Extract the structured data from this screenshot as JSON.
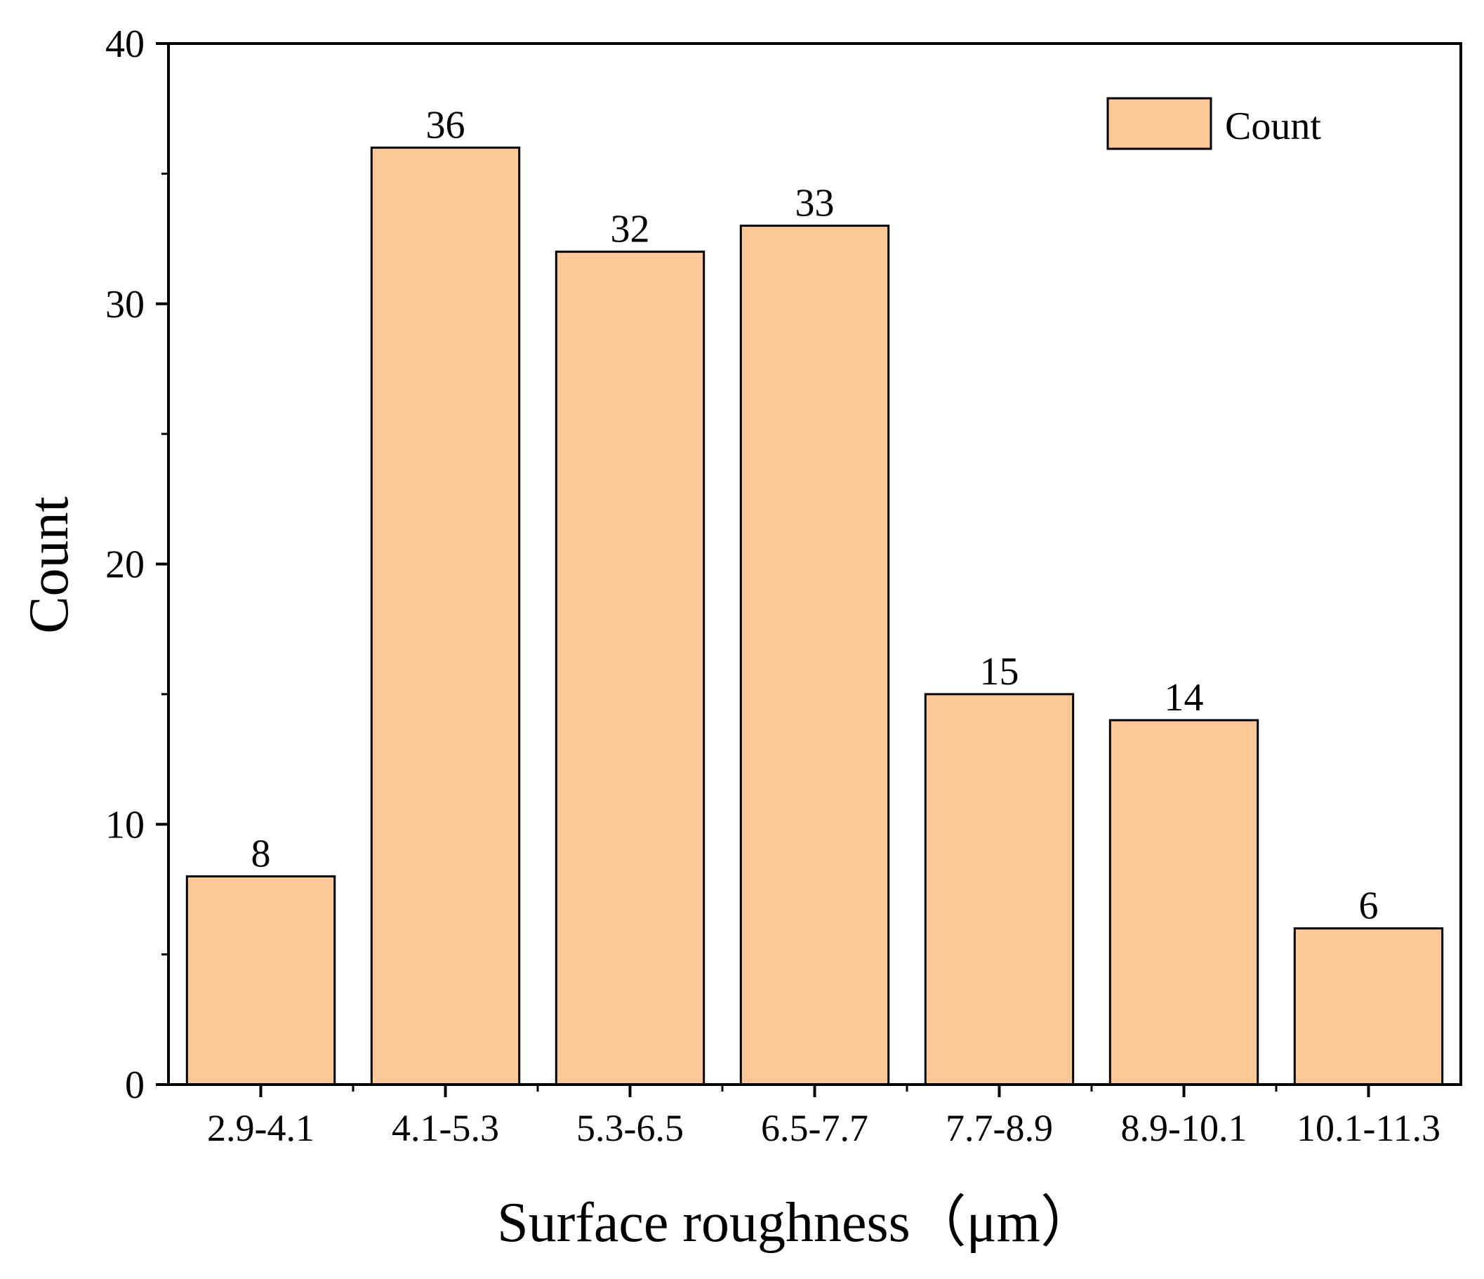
{
  "chart_data": {
    "type": "bar",
    "title": "",
    "xlabel": "Surface roughness（μm）",
    "ylabel": "Count",
    "categories": [
      "2.9-4.1",
      "4.1-5.3",
      "5.3-6.5",
      "6.5-7.7",
      "7.7-8.9",
      "8.9-10.1",
      "10.1-11.3"
    ],
    "series": [
      {
        "name": "Count",
        "values": [
          8,
          36,
          32,
          33,
          15,
          14,
          6
        ]
      }
    ],
    "ylim": [
      0,
      40
    ],
    "yticks": [
      "0",
      "10",
      "20",
      "30",
      "40"
    ],
    "data_labels": [
      "8",
      "36",
      "32",
      "33",
      "15",
      "14",
      "6"
    ],
    "legend": {
      "label": "Count",
      "position": "top-right"
    },
    "grid": false
  },
  "colors": {
    "bar_fill": "#FDC897",
    "bar_stroke": "#000000",
    "axis": "#000000"
  }
}
